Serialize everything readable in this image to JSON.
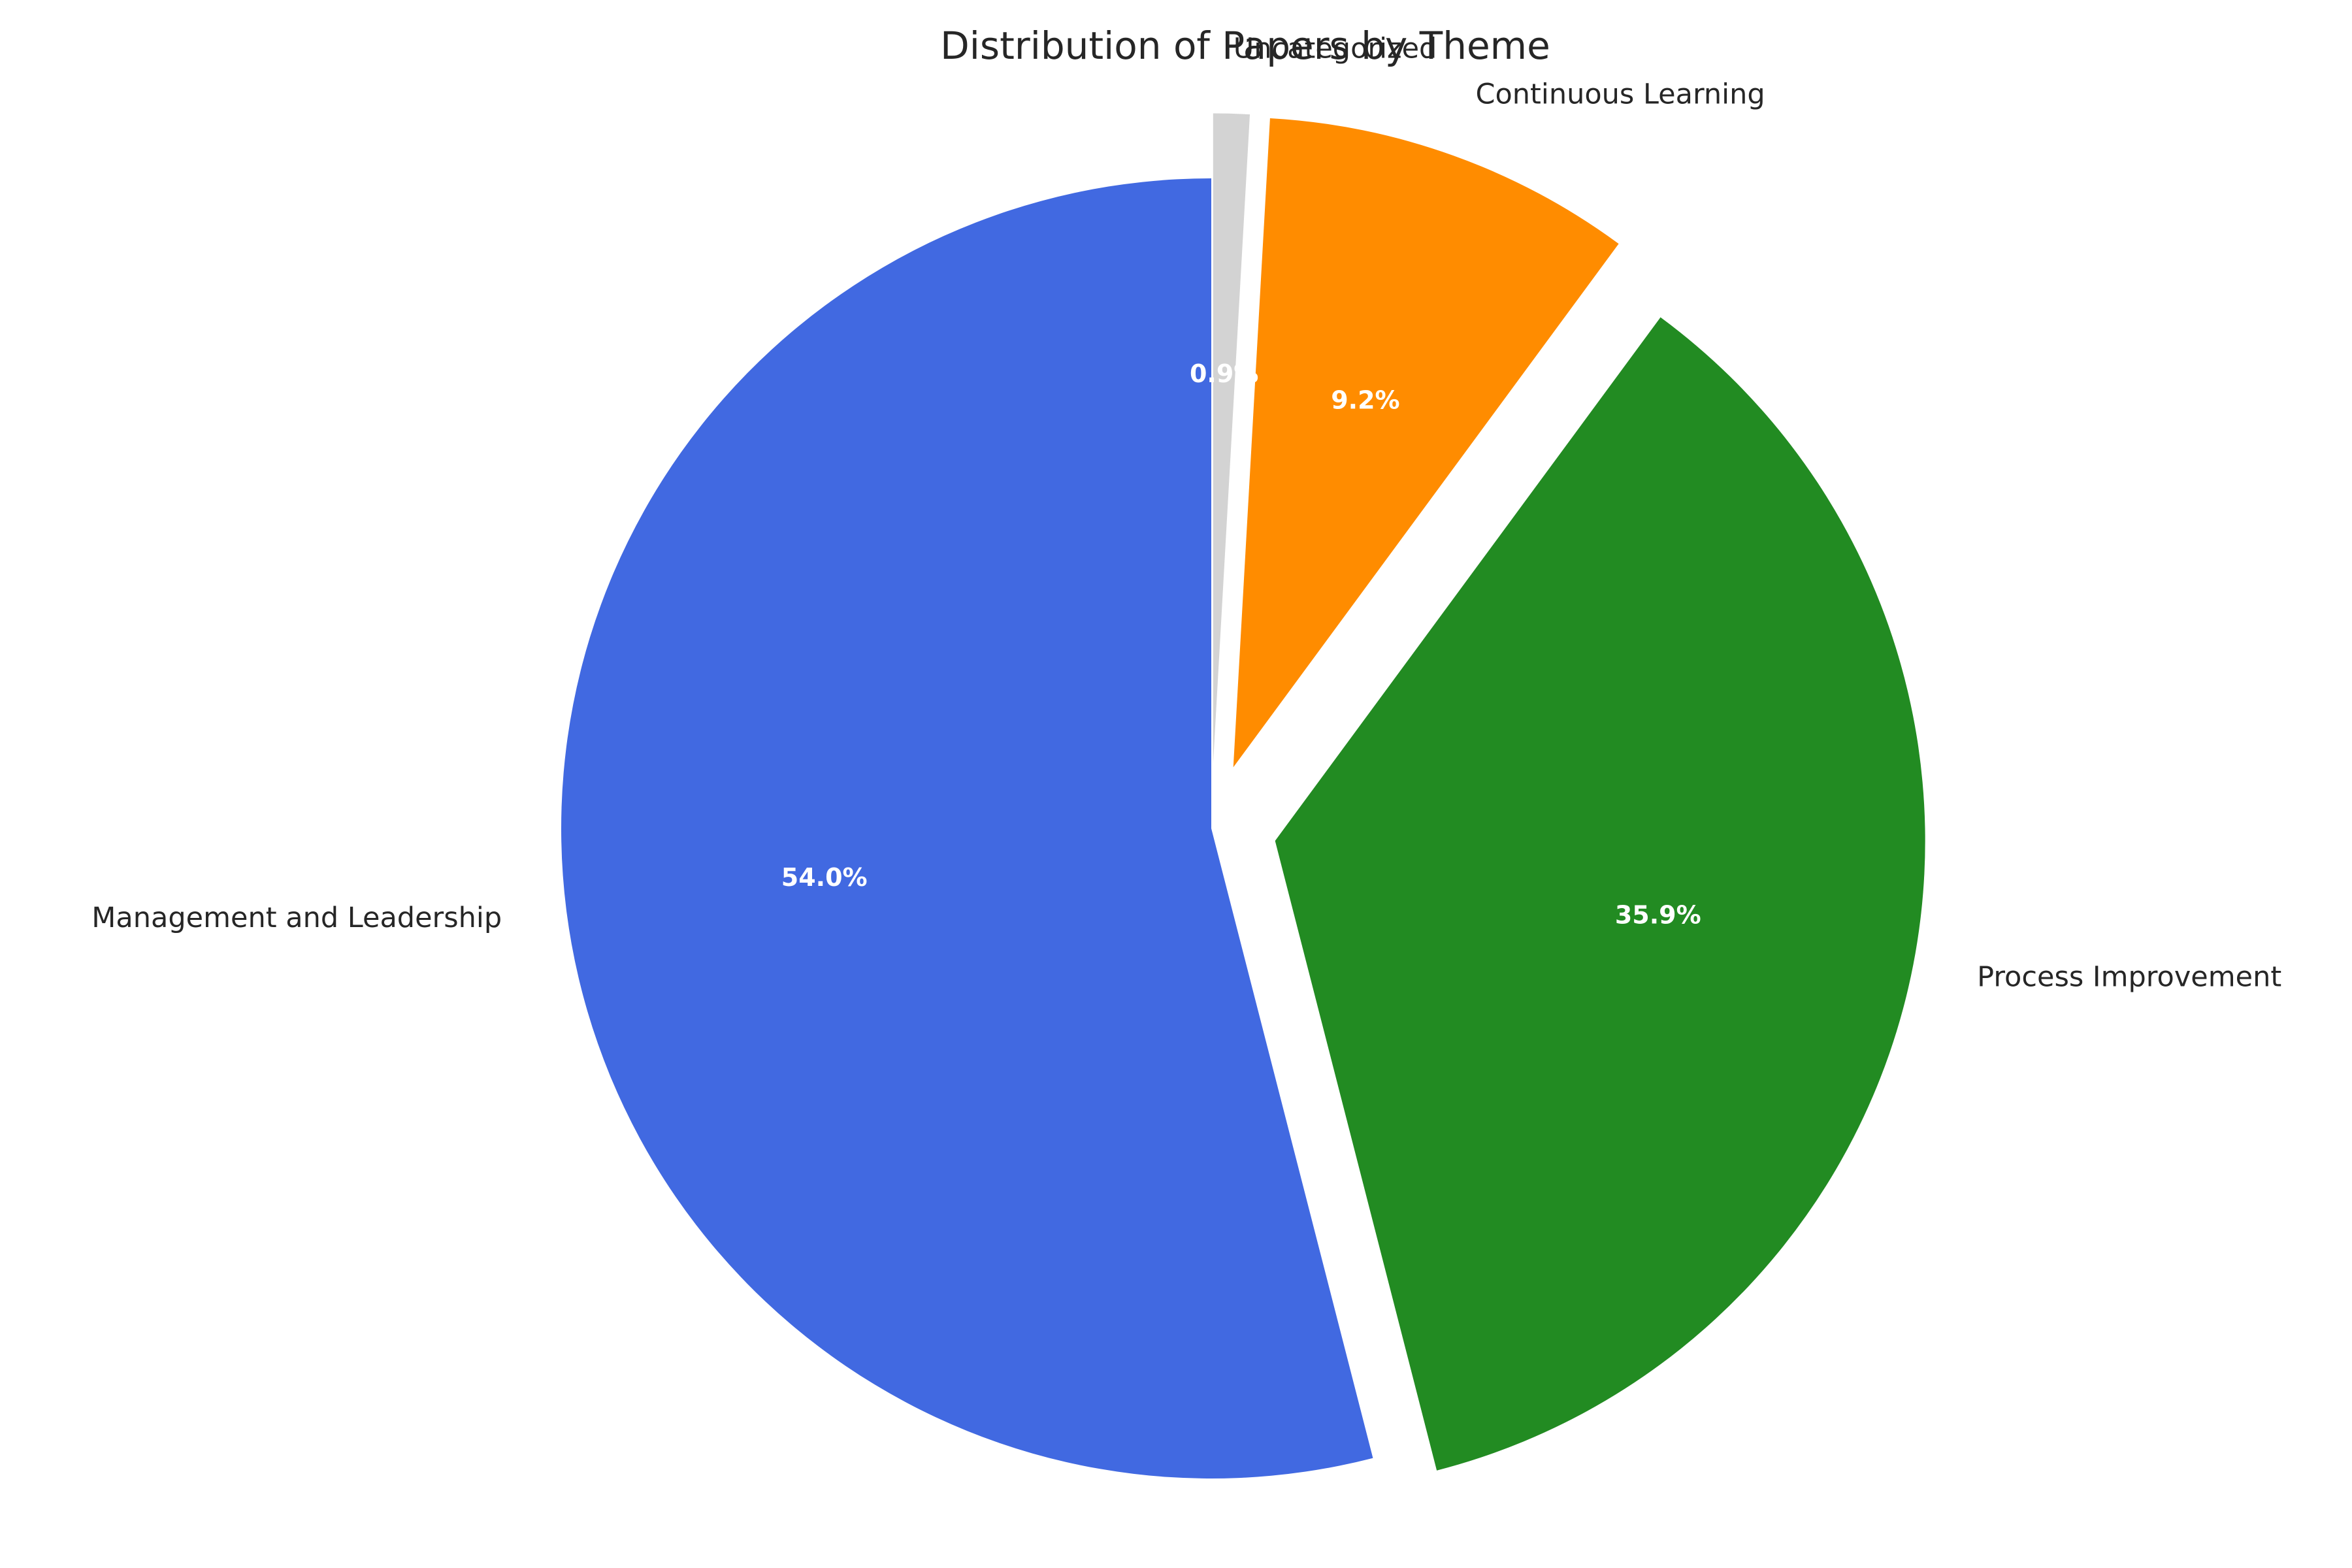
{
  "chart_data": {
    "type": "pie",
    "title": "Distribution of Papers by Theme",
    "start_angle_deg": 90,
    "direction": "clockwise",
    "slices": [
      {
        "label": "Uncategorized",
        "value": 0.9,
        "pct_label": "0.9%",
        "color": "#d3d3d3",
        "exploded": true
      },
      {
        "label": "Continuous Learning",
        "value": 9.2,
        "pct_label": "9.2%",
        "color": "#ff8c00",
        "exploded": true
      },
      {
        "label": "Process Improvement",
        "value": 35.9,
        "pct_label": "35.9%",
        "color": "#228b22",
        "exploded": true
      },
      {
        "label": "Management and Leadership",
        "value": 54.0,
        "pct_label": "54.0%",
        "color": "#4169e1",
        "exploded": false
      }
    ]
  }
}
